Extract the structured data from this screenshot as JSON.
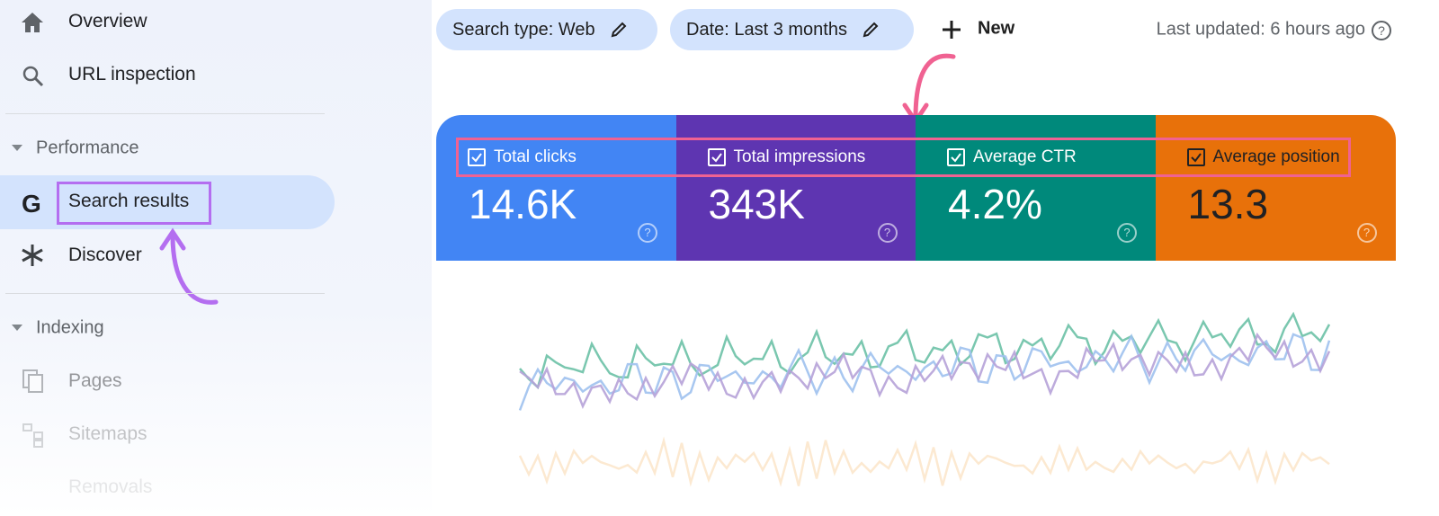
{
  "sidebar": {
    "items": [
      {
        "label": "Overview"
      },
      {
        "label": "URL inspection"
      }
    ],
    "sections": [
      {
        "label": "Performance",
        "items": [
          {
            "label": "Search results"
          },
          {
            "label": "Discover"
          }
        ]
      },
      {
        "label": "Indexing",
        "items": [
          {
            "label": "Pages"
          },
          {
            "label": "Sitemaps"
          },
          {
            "label": "Removals"
          }
        ]
      }
    ]
  },
  "toolbar": {
    "chips": [
      "Search type: Web",
      "Date: Last 3 months"
    ],
    "new": "New",
    "updated": "Last updated: 6 hours ago"
  },
  "metrics": [
    {
      "label": "Total clicks",
      "value": "14.6K"
    },
    {
      "label": "Total impressions",
      "value": "343K"
    },
    {
      "label": "Average CTR",
      "value": "4.2%"
    },
    {
      "label": "Average position",
      "value": "13.3"
    }
  ]
}
